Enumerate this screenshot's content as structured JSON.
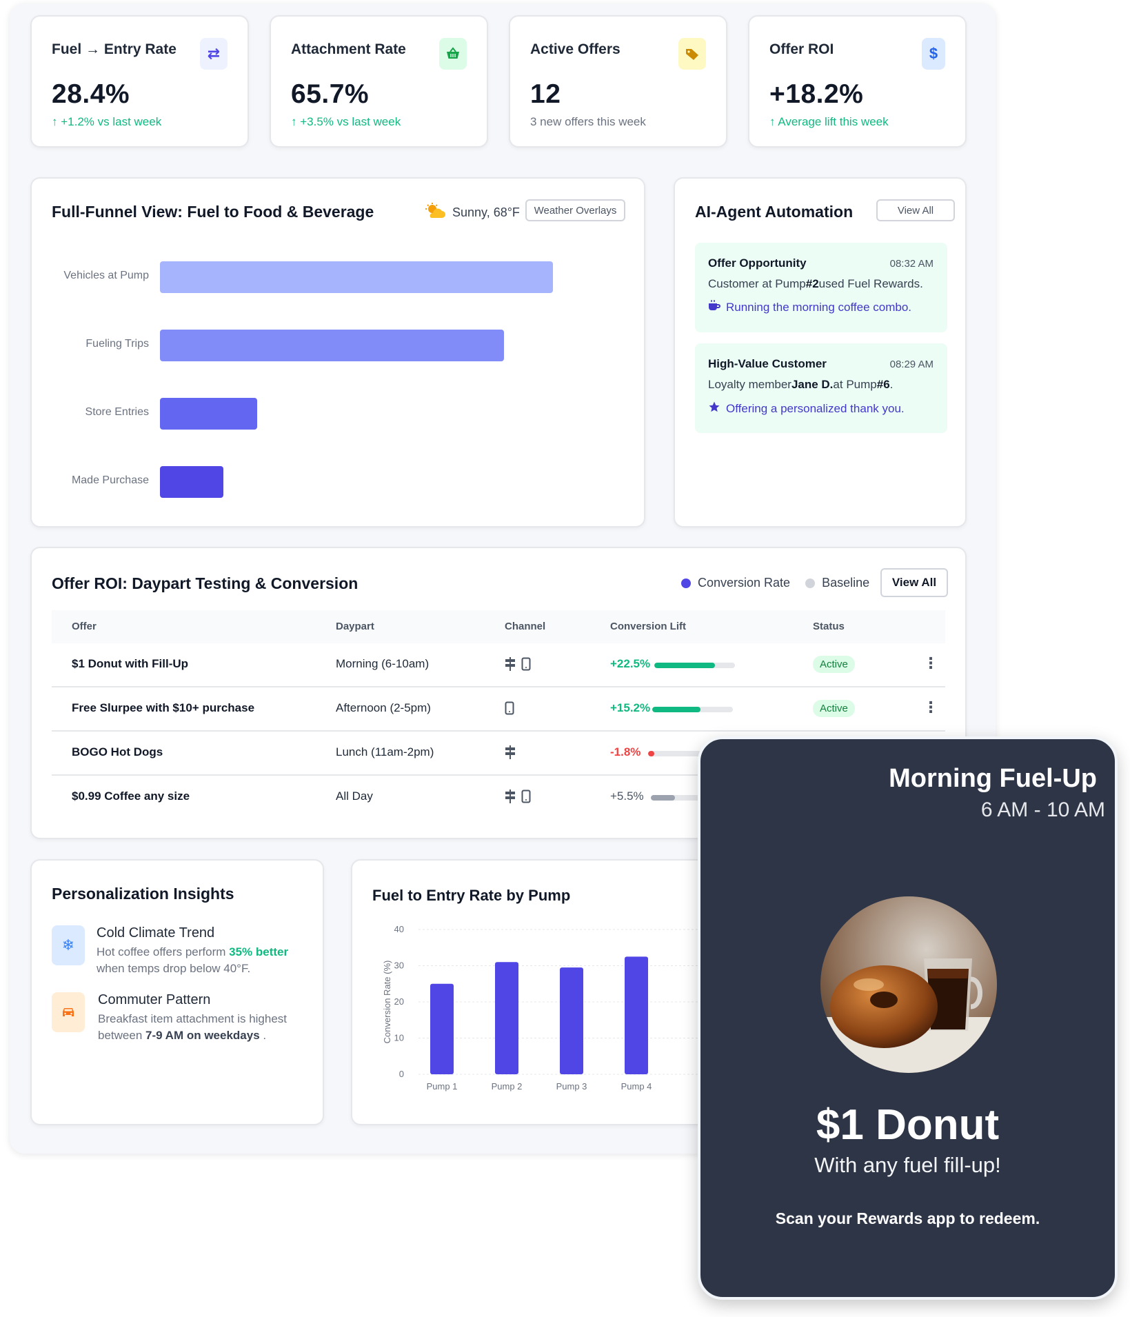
{
  "kpis": [
    {
      "title": "Fuel → Entry Rate",
      "value": "28.4%",
      "sub": "+1.2% vs last week",
      "arrow": "↑",
      "icon": "swap-arrows-icon",
      "icon_bg": "#eef2ff",
      "icon_color": "#4f46e5"
    },
    {
      "title": "Attachment Rate",
      "value": "65.7%",
      "sub": "+3.5% vs last week",
      "arrow": "↑",
      "icon": "basket-icon",
      "icon_bg": "#dcfce7",
      "icon_color": "#16a34a"
    },
    {
      "title": "Active Offers",
      "value": "12",
      "sub": "3 new offers this week",
      "icon": "tag-icon",
      "icon_bg": "#fef9c3",
      "icon_color": "#ca8a04"
    },
    {
      "title": "Offer ROI",
      "value": "+18.2%",
      "sub": "Average lift this week",
      "arrow": "↑",
      "icon": "dollar-icon",
      "icon_bg": "#dbeafe",
      "icon_color": "#2563eb"
    }
  ],
  "funnel": {
    "title": "Full-Funnel View: Fuel to Food & Beverage",
    "weather": "Sunny, 68°F",
    "weather_button": "Weather Overlays",
    "stages": [
      {
        "label": "Vehicles at Pump",
        "share": 1.0,
        "color": "#a5b4fc"
      },
      {
        "label": "Fueling Trips",
        "share": 0.876,
        "color": "#818cf8"
      },
      {
        "label": "Store Entries",
        "share": 0.247,
        "color": "#6366f1"
      },
      {
        "label": "Made Purchase",
        "share": 0.161,
        "color": "#4f46e5"
      }
    ]
  },
  "ai": {
    "title": "AI-Agent Automation",
    "view_all": "View All",
    "items": [
      {
        "head": "Offer Opportunity",
        "time": "08:32 AM",
        "pre": "Customer at Pump",
        "bold1": "#2",
        "mid": "used Fuel Rewards.",
        "bold2": "",
        "post": "",
        "action": "Running the morning coffee combo.",
        "icon": "coffee-cup-icon"
      },
      {
        "head": "High-Value Customer",
        "time": "08:29 AM",
        "pre": "Loyalty member",
        "bold1": "Jane D.",
        "mid": "at Pump",
        "bold2": "#6",
        "post": ".",
        "action": "Offering a personalized thank you.",
        "icon": "star-icon"
      }
    ]
  },
  "roi": {
    "title": "Offer ROI: Daypart Testing & Conversion",
    "legend": [
      {
        "label": "Conversion Rate",
        "color": "#4f46e5"
      },
      {
        "label": "Baseline",
        "color": "#d1d5db"
      }
    ],
    "view_all": "View All",
    "headers": [
      "Offer",
      "Daypart",
      "Channel",
      "Conversion Lift",
      "Status"
    ],
    "rows": [
      {
        "offer": "$1 Donut with Fill-Up",
        "daypart": "Morning (6-10am)",
        "channels": [
          "pump",
          "mobile"
        ],
        "lift": "+22.5%",
        "lift_fraction": 0.75,
        "lift_color": "#10b981",
        "status": "Active"
      },
      {
        "offer": "Free Slurpee with $10+ purchase",
        "daypart": "Afternoon (2-5pm)",
        "channels": [
          "mobile"
        ],
        "lift": "+15.2%",
        "lift_fraction": 0.6,
        "lift_color": "#10b981",
        "status": "Active"
      },
      {
        "offer": "BOGO Hot Dogs",
        "daypart": "Lunch (11am-2pm)",
        "channels": [
          "pump"
        ],
        "lift": "-1.8%",
        "lift_fraction": 0.08,
        "lift_color": "#ef4444",
        "status": ""
      },
      {
        "offer": "$0.99 Coffee any size",
        "daypart": "All Day",
        "channels": [
          "pump",
          "mobile"
        ],
        "lift": "+5.5%",
        "lift_fraction": 0.3,
        "lift_color": "#9ca3af",
        "status": ""
      }
    ]
  },
  "insights": {
    "title": "Personalization Insights",
    "items": [
      {
        "title": "Cold Climate Trend",
        "text_pre": "Hot coffee offers perform ",
        "text_bold": "35% better",
        "text_post": " when temps drop below 40°F.",
        "icon": "snowflake-icon",
        "icon_bg": "#dbeafe",
        "icon_color": "#3b82f6"
      },
      {
        "title": "Commuter Pattern",
        "text_pre": "Breakfast item attachment is highest between ",
        "text_bold": "7-9 AM on weekdays",
        "text_post": " .",
        "icon": "car-icon",
        "icon_bg": "#ffedd5",
        "icon_color": "#f97316"
      }
    ]
  },
  "chart_data": {
    "type": "bar",
    "title": "Fuel to Entry Rate by Pump",
    "xlabel": "",
    "ylabel": "Conversion Rate (%)",
    "categories": [
      "Pump 1",
      "Pump 2",
      "Pump 3",
      "Pump 4"
    ],
    "values": [
      25,
      31,
      29.5,
      32.5
    ],
    "ylim": [
      0,
      40
    ],
    "yticks": [
      0,
      10,
      20,
      30,
      40
    ],
    "grid": true,
    "bar_color": "#4f46e5"
  },
  "promo": {
    "title": "Morning Fuel-Up",
    "time": "6 AM - 10 AM",
    "headline": "$1 Donut",
    "sub": "With any fuel fill-up!",
    "cta": "Scan your Rewards app to redeem."
  }
}
